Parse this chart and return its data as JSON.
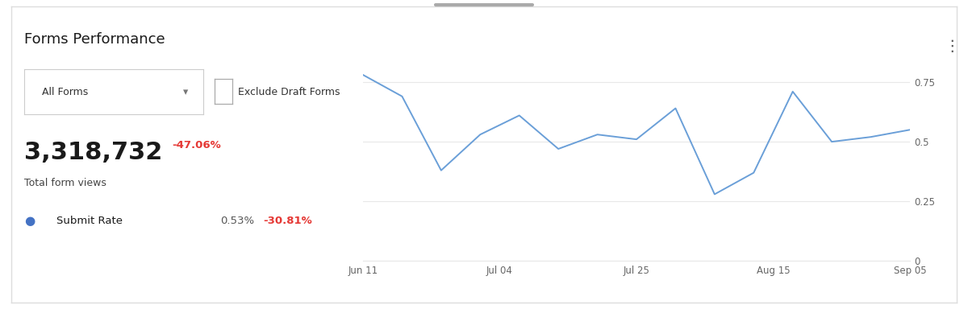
{
  "title": "Forms Performance",
  "dropdown_label": "All Forms",
  "checkbox_label": "Exclude Draft Forms",
  "total_views": "3,318,732",
  "total_views_change": "-47.06%",
  "submit_rate_label": "Submit Rate",
  "submit_rate_value": "0.53%",
  "submit_rate_change": "-30.81%",
  "x_labels": [
    "Jun 11",
    "Jul 04",
    "Jul 25",
    "Aug 15",
    "Sep 05"
  ],
  "y_ticks": [
    0,
    0.25,
    0.5,
    0.75
  ],
  "line_color": "#6a9fd8",
  "line_data_x": [
    0,
    1,
    2,
    3,
    4,
    5,
    6,
    7,
    8,
    9,
    10,
    11,
    12,
    13,
    14
  ],
  "line_data_y": [
    0.78,
    0.69,
    0.38,
    0.53,
    0.61,
    0.47,
    0.53,
    0.51,
    0.64,
    0.28,
    0.37,
    0.71,
    0.5,
    0.52,
    0.55
  ],
  "background_color": "#ffffff",
  "border_color": "#dddddd",
  "grid_color": "#e8e8e8",
  "text_color_dark": "#1a1a1a",
  "text_color_red": "#e53935",
  "text_color_gray": "#777777",
  "dot_color": "#4472c4",
  "ylim": [
    0,
    0.88
  ],
  "xlim_min": 0,
  "xlim_max": 14,
  "x_tick_positions": [
    0,
    3.5,
    7,
    10.5,
    14
  ]
}
